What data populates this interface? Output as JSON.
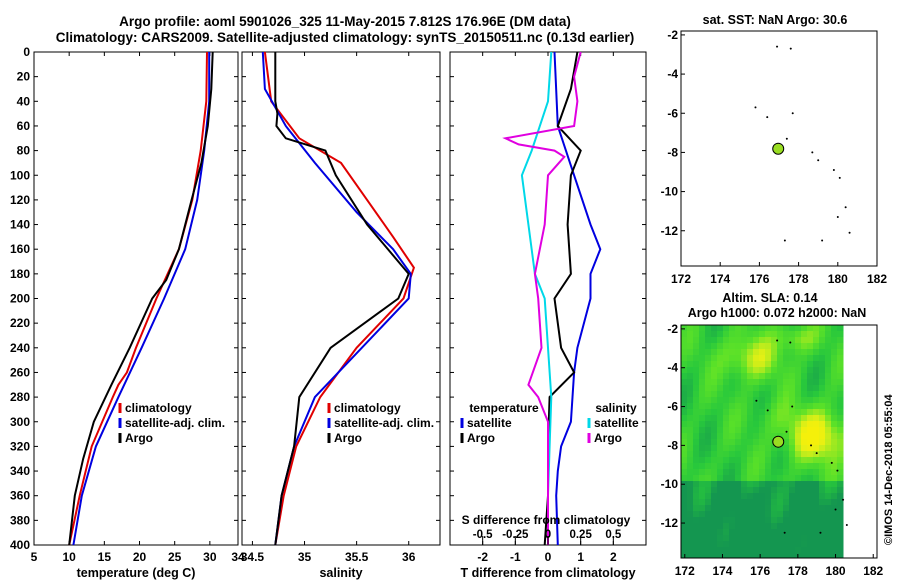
{
  "header": {
    "title_line1": "Argo profile: aoml 5901026_325 11-May-2015 7.812S 176.96E (DM data)",
    "title_line2": "Climatology: CARS2009. Satellite-adjusted climatology: synTS_20150511.nc (0.13d earlier)"
  },
  "colors": {
    "climatology": "#e00000",
    "satellite": "#0000e0",
    "argo": "#000000",
    "salinity_sat": "#00d8e8",
    "salinity_diff": "#e000e0",
    "marker": "#99dd22"
  },
  "depth_axis": {
    "ticks": [
      0,
      20,
      40,
      60,
      80,
      100,
      120,
      140,
      160,
      180,
      200,
      220,
      240,
      260,
      280,
      300,
      320,
      340,
      360,
      380,
      400
    ]
  },
  "chart_data": [
    {
      "type": "line",
      "id": "temperature",
      "xlabel": "temperature (deg C)",
      "ylabel": "",
      "xlim": [
        5,
        34
      ],
      "ylim": [
        400,
        0
      ],
      "xticks": [
        5,
        10,
        15,
        20,
        25,
        30,
        34
      ],
      "yticks": [
        0,
        20,
        40,
        60,
        80,
        100,
        120,
        140,
        160,
        180,
        200,
        220,
        240,
        260,
        280,
        300,
        320,
        340,
        360,
        380,
        400
      ],
      "legend": [
        "climatology",
        "satellite-adj. clim.",
        "Argo"
      ],
      "series": [
        {
          "name": "climatology",
          "depth": [
            0,
            40,
            80,
            120,
            160,
            200,
            240,
            260,
            270,
            280,
            320,
            360,
            400
          ],
          "values": [
            29.6,
            29.5,
            28.7,
            27.5,
            25.6,
            22.4,
            19.5,
            18.2,
            17.0,
            16.2,
            13.2,
            11.5,
            10.0
          ]
        },
        {
          "name": "satellite-adj. clim.",
          "depth": [
            0,
            40,
            80,
            120,
            160,
            200,
            240,
            280,
            320,
            360,
            400
          ],
          "values": [
            29.9,
            29.9,
            29.2,
            28.2,
            26.5,
            23.5,
            20.3,
            17.0,
            13.8,
            11.8,
            10.6
          ]
        },
        {
          "name": "Argo",
          "depth": [
            0,
            30,
            60,
            90,
            120,
            160,
            185,
            200,
            240,
            270,
            300,
            330,
            360,
            400
          ],
          "values": [
            30.4,
            30.2,
            29.7,
            28.8,
            27.4,
            25.6,
            23.8,
            21.8,
            18.6,
            16.0,
            13.5,
            12.0,
            10.8,
            10.0
          ]
        }
      ]
    },
    {
      "type": "line",
      "id": "salinity",
      "xlabel": "salinity",
      "ylabel": "",
      "xlim": [
        34.4,
        36.3
      ],
      "ylim": [
        400,
        0
      ],
      "xticks": [
        34.5,
        35,
        35.5,
        36
      ],
      "legend": [
        "climatology",
        "satellite-adj. clim.",
        "Argo"
      ],
      "series": [
        {
          "name": "climatology",
          "depth": [
            0,
            40,
            70,
            90,
            120,
            150,
            175,
            200,
            240,
            280,
            320,
            360,
            400
          ],
          "values": [
            34.62,
            34.68,
            34.95,
            35.35,
            35.6,
            35.85,
            36.05,
            35.95,
            35.5,
            35.15,
            34.92,
            34.8,
            34.72
          ]
        },
        {
          "name": "satellite-adj. clim.",
          "depth": [
            0,
            30,
            60,
            90,
            130,
            160,
            180,
            200,
            240,
            280,
            320,
            360,
            400
          ],
          "values": [
            34.6,
            34.62,
            34.82,
            35.1,
            35.5,
            35.85,
            36.02,
            36.0,
            35.55,
            35.1,
            34.9,
            34.78,
            34.72
          ]
        },
        {
          "name": "Argo",
          "depth": [
            0,
            40,
            50,
            60,
            70,
            80,
            100,
            140,
            180,
            200,
            240,
            280,
            320,
            360,
            400
          ],
          "values": [
            34.72,
            34.72,
            34.74,
            34.73,
            34.82,
            35.2,
            35.3,
            35.6,
            36.0,
            35.9,
            35.25,
            34.95,
            34.9,
            34.78,
            34.72
          ]
        }
      ]
    },
    {
      "type": "line",
      "id": "difference",
      "xlabel": "T difference from climatology",
      "top_label": "S difference from climatology",
      "xlim": [
        -3,
        3
      ],
      "ylim": [
        400,
        0
      ],
      "xticks": [
        -2,
        -1,
        0,
        1,
        2
      ],
      "s_ticks": [
        -0.5,
        -0.25,
        0,
        0.25,
        0.5
      ],
      "legend_temperature": {
        "heading": "temperature",
        "items": [
          "satellite",
          "Argo"
        ]
      },
      "legend_salinity": {
        "heading": "salinity",
        "items": [
          "satellite",
          "Argo"
        ]
      },
      "series": [
        {
          "name": "T satellite",
          "depth": [
            0,
            60,
            100,
            140,
            160,
            180,
            200,
            240,
            260,
            280,
            300,
            320,
            340,
            360,
            400
          ],
          "values": [
            0.2,
            0.3,
            0.8,
            1.3,
            1.6,
            1.3,
            1.3,
            0.9,
            0.8,
            0.75,
            0.7,
            0.4,
            0.3,
            0.25,
            0.3
          ]
        },
        {
          "name": "T Argo",
          "depth": [
            0,
            30,
            60,
            80,
            100,
            140,
            180,
            200,
            240,
            260,
            280,
            320,
            360,
            400
          ],
          "values": [
            0.9,
            0.7,
            0.3,
            1.0,
            0.7,
            0.6,
            0.7,
            0.2,
            0.4,
            0.8,
            0.05,
            0.0,
            0.0,
            -0.1
          ]
        },
        {
          "name": "S satellite",
          "depth": [
            0,
            40,
            80,
            100,
            140,
            180,
            200,
            240,
            280,
            320,
            360,
            400
          ],
          "values": [
            0.1,
            0.0,
            -0.5,
            -0.8,
            -0.6,
            -0.4,
            -0.1,
            0.0,
            0.1,
            0.05,
            0.0,
            0.0
          ]
        },
        {
          "name": "S Argo",
          "depth": [
            0,
            20,
            40,
            60,
            70,
            75,
            80,
            85,
            100,
            140,
            180,
            200,
            240,
            270,
            280,
            300,
            340,
            400
          ],
          "values": [
            1.0,
            0.8,
            0.9,
            0.8,
            -1.3,
            -0.9,
            0.2,
            0.5,
            0.0,
            -0.1,
            -0.4,
            -0.3,
            -0.2,
            -0.6,
            -0.3,
            0.0,
            0.0,
            0.0
          ]
        }
      ]
    },
    {
      "type": "scatter",
      "id": "sst_map",
      "title": "sat. SST: NaN Argo: 30.6",
      "xlim": [
        172,
        182
      ],
      "ylim": [
        -13.8,
        -1.8
      ],
      "xticks": [
        172,
        174,
        176,
        178,
        180,
        182
      ],
      "yticks": [
        -2,
        -4,
        -6,
        -8,
        -10,
        -12
      ],
      "float": {
        "lon": 176.96,
        "lat": -7.81
      },
      "dots": [
        [
          176.9,
          -2.6
        ],
        [
          177.6,
          -2.7
        ],
        [
          175.8,
          -5.7
        ],
        [
          176.4,
          -6.2
        ],
        [
          177.7,
          -6.0
        ],
        [
          177.4,
          -7.3
        ],
        [
          179.0,
          -8.4
        ],
        [
          178.7,
          -8.0
        ],
        [
          179.8,
          -8.9
        ],
        [
          180.1,
          -9.3
        ],
        [
          180.4,
          -10.8
        ],
        [
          180.0,
          -11.3
        ],
        [
          177.3,
          -12.5
        ],
        [
          179.2,
          -12.5
        ],
        [
          180.6,
          -12.1
        ]
      ]
    },
    {
      "type": "heatmap",
      "id": "sla_map",
      "title_line1": "Altim. SLA: 0.14",
      "title_line2": "Argo h1000: 0.072 h2000: NaN",
      "xlim": [
        171.8,
        182.2
      ],
      "ylim": [
        -13.8,
        -1.8
      ],
      "xticks": [
        172,
        174,
        176,
        178,
        180,
        182
      ],
      "yticks": [
        -2,
        -4,
        -6,
        -8,
        -10,
        -12
      ],
      "float": {
        "lon": 176.96,
        "lat": -7.81
      },
      "dots": [
        [
          176.9,
          -2.6
        ],
        [
          177.6,
          -2.7
        ],
        [
          175.8,
          -5.7
        ],
        [
          176.4,
          -6.2
        ],
        [
          177.7,
          -6.0
        ],
        [
          177.4,
          -7.3
        ],
        [
          179.0,
          -8.4
        ],
        [
          178.7,
          -8.0
        ],
        [
          179.8,
          -8.9
        ],
        [
          180.1,
          -9.3
        ],
        [
          180.4,
          -10.8
        ],
        [
          180.0,
          -11.3
        ],
        [
          177.3,
          -12.5
        ],
        [
          179.2,
          -12.5
        ],
        [
          180.6,
          -12.1
        ]
      ]
    }
  ],
  "footer": {
    "stamp": "©IMOS 14-Dec-2018 05:55:04"
  }
}
